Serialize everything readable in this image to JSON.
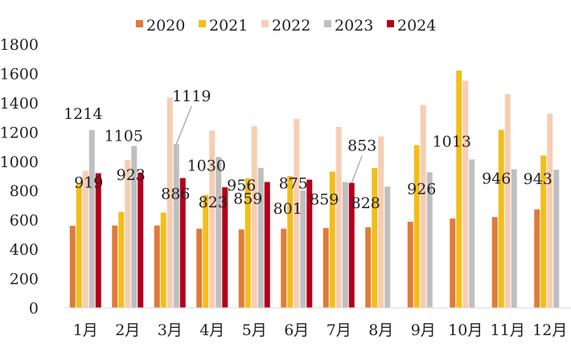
{
  "chart_data": {
    "type": "bar",
    "title": "",
    "xlabel": "",
    "ylabel": "",
    "ylim": [
      0,
      1800
    ],
    "yticks": [
      0,
      200,
      400,
      600,
      800,
      1000,
      1200,
      1400,
      1600,
      1800
    ],
    "grid": false,
    "legend_position": "top",
    "categories": [
      "1月",
      "2月",
      "3月",
      "4月",
      "5月",
      "6月",
      "7月",
      "8月",
      "9月",
      "10月",
      "11月",
      "12月"
    ],
    "series": [
      {
        "name": "2020",
        "color": "#E07B39",
        "values": [
          560,
          562,
          562,
          540,
          535,
          540,
          545,
          550,
          588,
          610,
          620,
          672
        ]
      },
      {
        "name": "2021",
        "color": "#F2BE1A",
        "values": [
          850,
          655,
          650,
          770,
          885,
          900,
          930,
          955,
          1110,
          1620,
          1215,
          1040
        ]
      },
      {
        "name": "2022",
        "color": "#F7CDB3",
        "values": [
          935,
          1010,
          1435,
          1210,
          1240,
          1290,
          1235,
          1170,
          1385,
          1550,
          1460,
          1325
        ]
      },
      {
        "name": "2023",
        "color": "#BFBFBF",
        "values": [
          1214,
          1105,
          1119,
          1030,
          956,
          801,
          859,
          828,
          926,
          1013,
          946,
          943
        ]
      },
      {
        "name": "2024",
        "color": "#B3001B",
        "values": [
          919,
          923,
          886,
          823,
          859,
          875,
          853,
          null,
          null,
          null,
          null,
          null
        ]
      }
    ],
    "data_labels": [
      {
        "month": "1月",
        "series": "2023",
        "text": "1214"
      },
      {
        "month": "1月",
        "series": "2024",
        "text": "919"
      },
      {
        "month": "2月",
        "series": "2023",
        "text": "1105"
      },
      {
        "month": "2月",
        "series": "2024",
        "text": "923"
      },
      {
        "month": "3月",
        "series": "2023",
        "text": "1119",
        "leader": true
      },
      {
        "month": "3月",
        "series": "2024",
        "text": "886"
      },
      {
        "month": "4月",
        "series": "2023",
        "text": "1030"
      },
      {
        "month": "4月",
        "series": "2024",
        "text": "823"
      },
      {
        "month": "5月",
        "series": "2023",
        "text": "956"
      },
      {
        "month": "5月",
        "series": "2024",
        "text": "859"
      },
      {
        "month": "6月",
        "series": "2023",
        "text": "801"
      },
      {
        "month": "6月",
        "series": "2024",
        "text": "875"
      },
      {
        "month": "7月",
        "series": "2023",
        "text": "859"
      },
      {
        "month": "7月",
        "series": "2024",
        "text": "853",
        "leader": true
      },
      {
        "month": "8月",
        "series": "2023",
        "text": "828"
      },
      {
        "month": "9月",
        "series": "2023",
        "text": "926"
      },
      {
        "month": "10月",
        "series": "2023",
        "text": "1013"
      },
      {
        "month": "11月",
        "series": "2023",
        "text": "946"
      },
      {
        "month": "12月",
        "series": "2023",
        "text": "943"
      }
    ]
  }
}
